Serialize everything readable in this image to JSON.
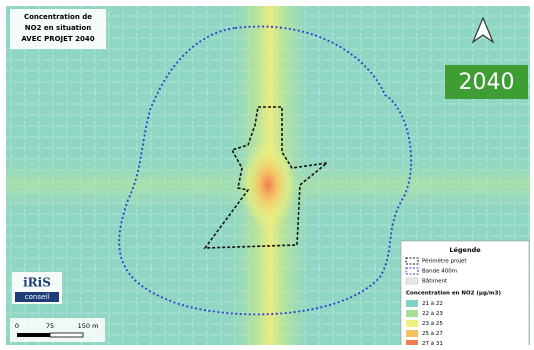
{
  "title_box": {
    "lines": [
      "Concentration de",
      "NO2 en situation",
      "AVEC PROJET 2040"
    ]
  },
  "badge": "2040",
  "legend": {
    "title": "Légende",
    "items": [
      "Périmètre projet",
      "Bande 400m",
      "Bâtiment"
    ],
    "concentration": {
      "title": "Concentration en NO2 (µg/m3)",
      "classes": [
        {
          "label": "21 à 22",
          "color": "#7fd3c6"
        },
        {
          "label": "22 à 23",
          "color": "#a6df9a"
        },
        {
          "label": "23 à 25",
          "color": "#eef07c"
        },
        {
          "label": "25 à 27",
          "color": "#f4c064"
        },
        {
          "label": "27 à 31",
          "color": "#ef7f52"
        }
      ]
    }
  },
  "logo": {
    "name": "iRiS",
    "tagline": "conseil"
  },
  "scale": {
    "labels": [
      "0",
      "75",
      "150 m"
    ]
  }
}
